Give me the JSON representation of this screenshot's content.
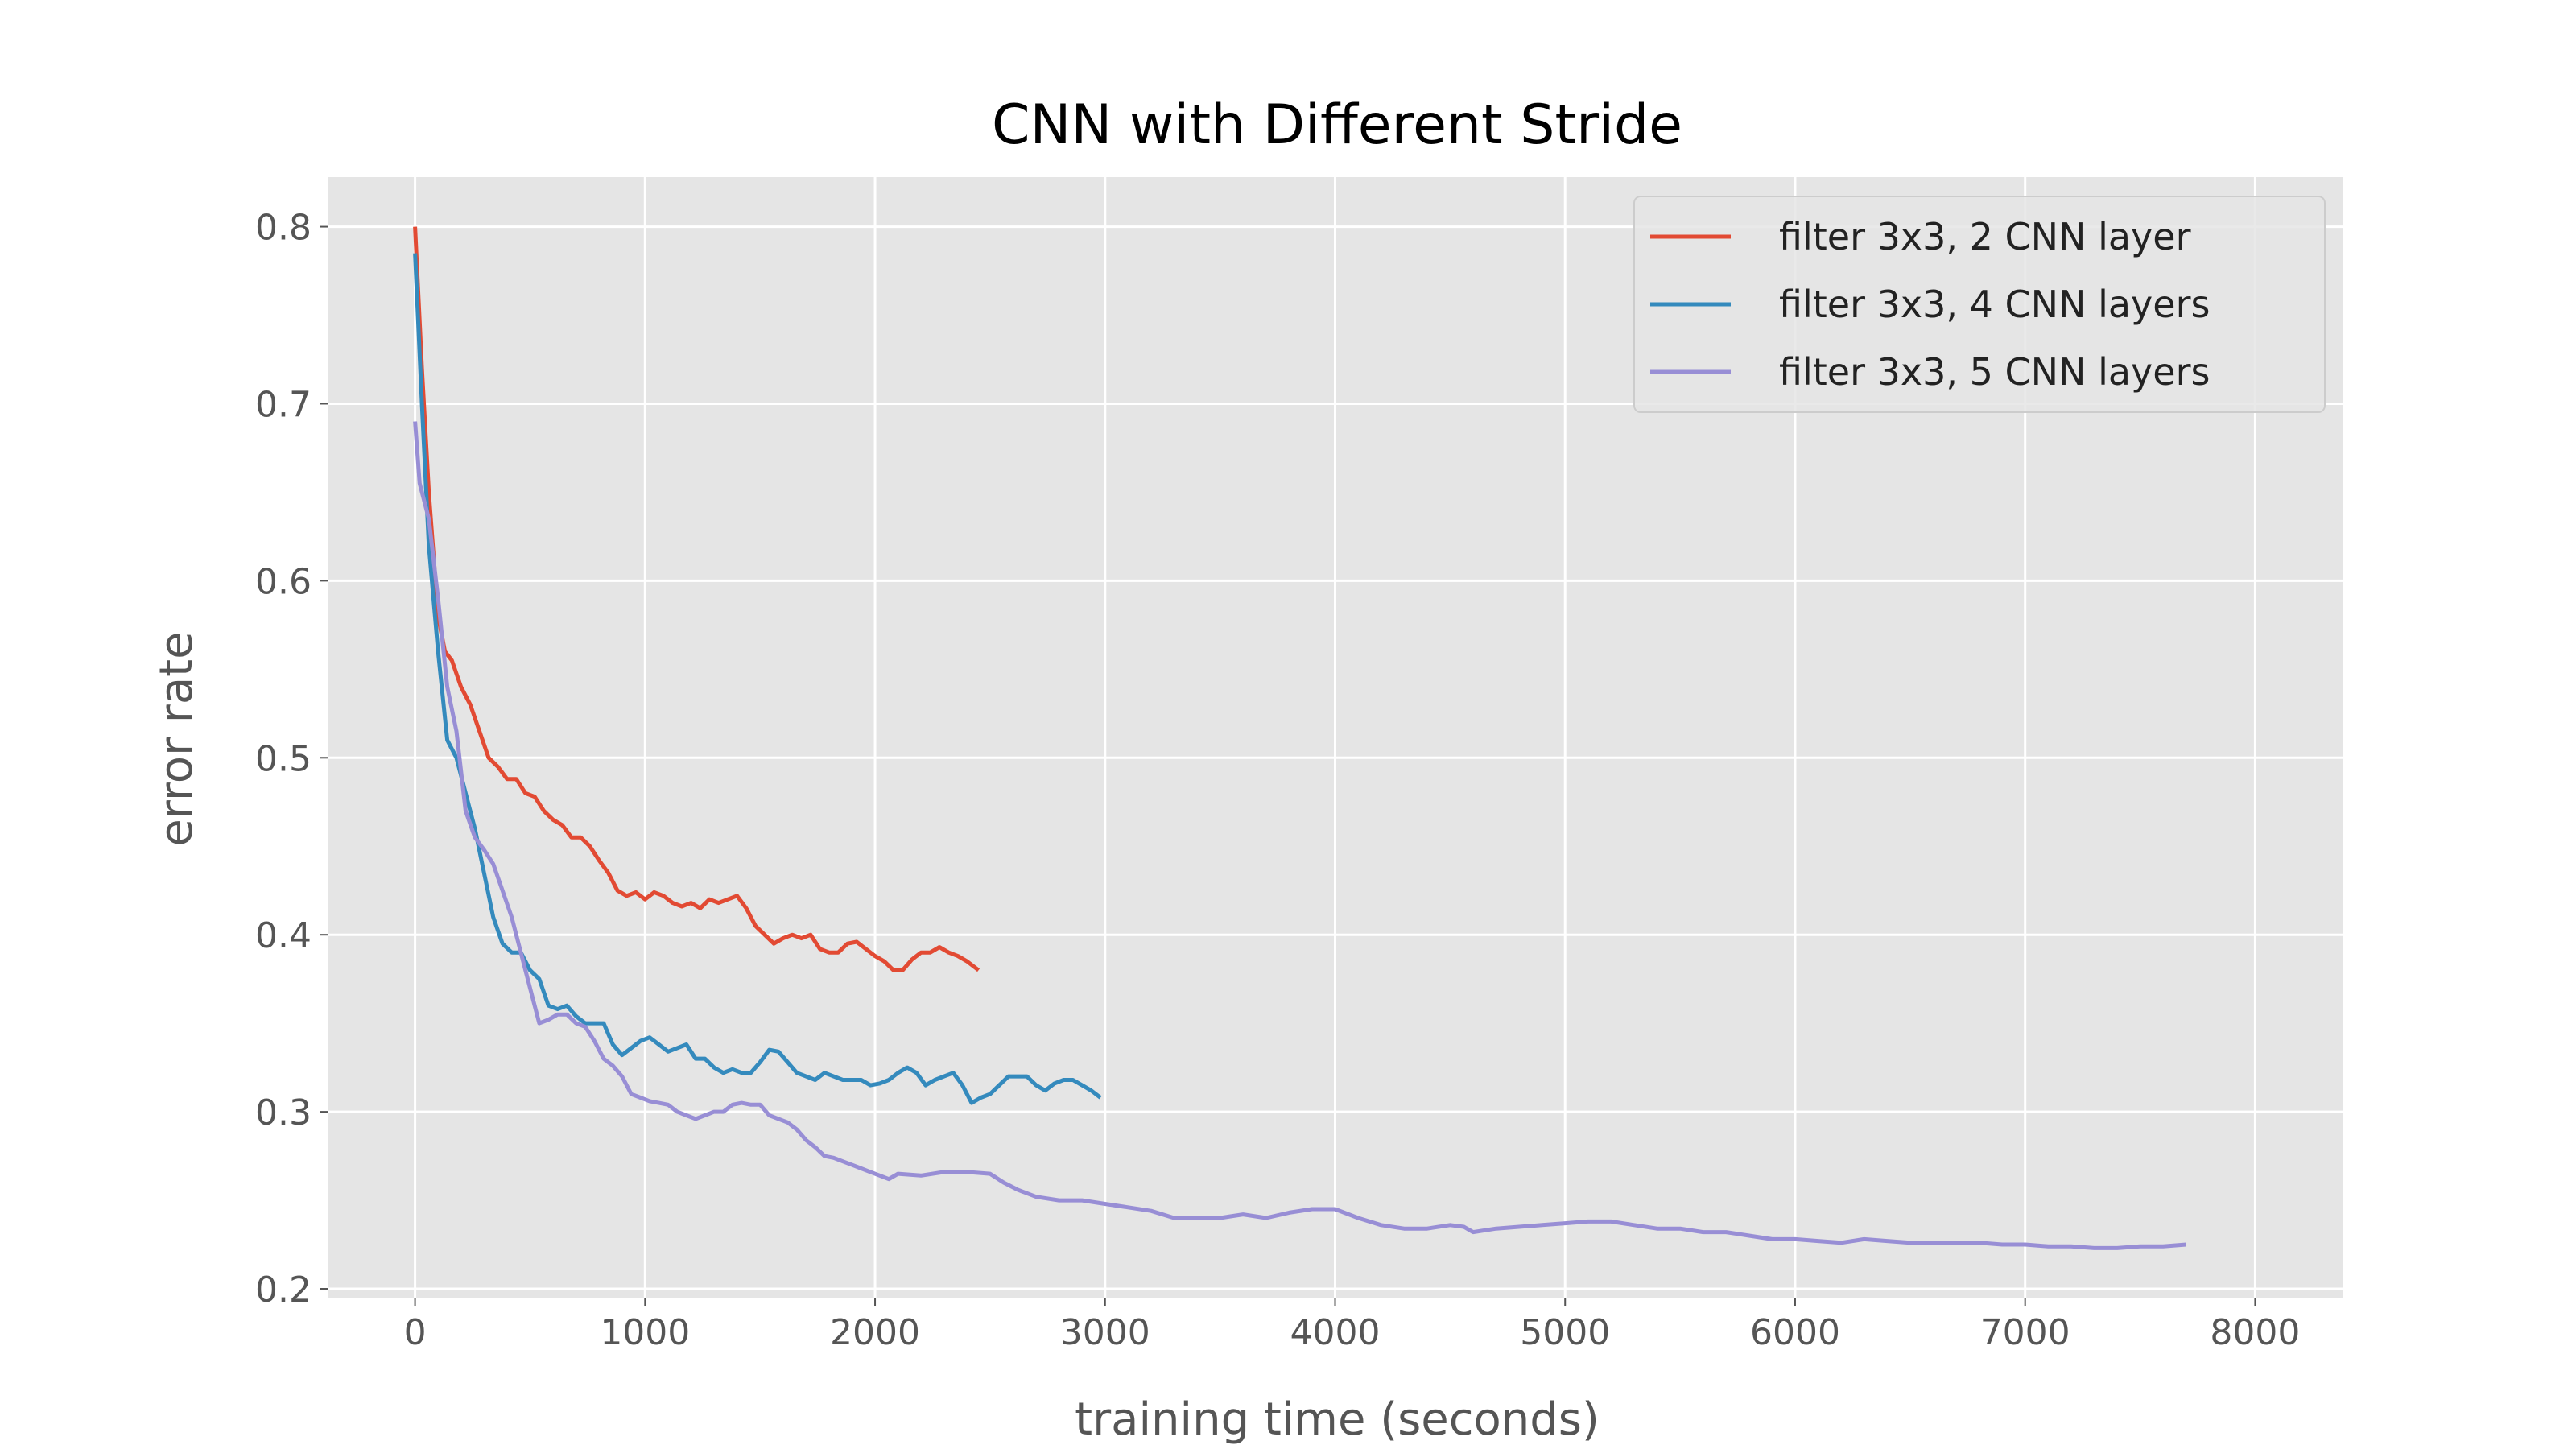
{
  "chart_data": {
    "type": "line",
    "title": "CNN with Different Stride",
    "xlabel": "training time (seconds)",
    "ylabel": "error rate",
    "xlim": [
      -380,
      8380
    ],
    "ylim": [
      0.195,
      0.828
    ],
    "xticks": [
      0,
      1000,
      2000,
      3000,
      4000,
      5000,
      6000,
      7000,
      8000
    ],
    "yticks": [
      0.2,
      0.3,
      0.4,
      0.5,
      0.6,
      0.7,
      0.8
    ],
    "grid": true,
    "legend_position": "top-right",
    "background": "#e5e5e5",
    "series": [
      {
        "name": "filter 3x3, 2 CNN layer",
        "color": "#e24a33",
        "points": [
          [
            0,
            0.8
          ],
          [
            30,
            0.72
          ],
          [
            60,
            0.65
          ],
          [
            100,
            0.58
          ],
          [
            130,
            0.56
          ],
          [
            160,
            0.555
          ],
          [
            200,
            0.54
          ],
          [
            240,
            0.53
          ],
          [
            280,
            0.515
          ],
          [
            320,
            0.5
          ],
          [
            360,
            0.495
          ],
          [
            400,
            0.488
          ],
          [
            440,
            0.488
          ],
          [
            480,
            0.48
          ],
          [
            520,
            0.478
          ],
          [
            560,
            0.47
          ],
          [
            600,
            0.465
          ],
          [
            640,
            0.462
          ],
          [
            680,
            0.455
          ],
          [
            720,
            0.455
          ],
          [
            760,
            0.45
          ],
          [
            800,
            0.442
          ],
          [
            840,
            0.435
          ],
          [
            880,
            0.425
          ],
          [
            920,
            0.422
          ],
          [
            960,
            0.424
          ],
          [
            1000,
            0.42
          ],
          [
            1040,
            0.424
          ],
          [
            1080,
            0.422
          ],
          [
            1120,
            0.418
          ],
          [
            1160,
            0.416
          ],
          [
            1200,
            0.418
          ],
          [
            1240,
            0.415
          ],
          [
            1280,
            0.42
          ],
          [
            1320,
            0.418
          ],
          [
            1360,
            0.42
          ],
          [
            1400,
            0.422
          ],
          [
            1440,
            0.415
          ],
          [
            1480,
            0.405
          ],
          [
            1520,
            0.4
          ],
          [
            1560,
            0.395
          ],
          [
            1600,
            0.398
          ],
          [
            1640,
            0.4
          ],
          [
            1680,
            0.398
          ],
          [
            1720,
            0.4
          ],
          [
            1760,
            0.392
          ],
          [
            1800,
            0.39
          ],
          [
            1840,
            0.39
          ],
          [
            1880,
            0.395
          ],
          [
            1920,
            0.396
          ],
          [
            1960,
            0.392
          ],
          [
            2000,
            0.388
          ],
          [
            2040,
            0.385
          ],
          [
            2080,
            0.38
          ],
          [
            2120,
            0.38
          ],
          [
            2160,
            0.386
          ],
          [
            2200,
            0.39
          ],
          [
            2240,
            0.39
          ],
          [
            2280,
            0.393
          ],
          [
            2320,
            0.39
          ],
          [
            2360,
            0.388
          ],
          [
            2400,
            0.385
          ],
          [
            2450,
            0.38
          ]
        ]
      },
      {
        "name": "filter 3x3, 4 CNN layers",
        "color": "#348abd",
        "points": [
          [
            0,
            0.785
          ],
          [
            30,
            0.7
          ],
          [
            60,
            0.62
          ],
          [
            100,
            0.56
          ],
          [
            140,
            0.51
          ],
          [
            180,
            0.5
          ],
          [
            220,
            0.48
          ],
          [
            260,
            0.46
          ],
          [
            300,
            0.435
          ],
          [
            340,
            0.41
          ],
          [
            380,
            0.395
          ],
          [
            420,
            0.39
          ],
          [
            460,
            0.39
          ],
          [
            500,
            0.38
          ],
          [
            540,
            0.375
          ],
          [
            580,
            0.36
          ],
          [
            620,
            0.358
          ],
          [
            660,
            0.36
          ],
          [
            700,
            0.354
          ],
          [
            740,
            0.35
          ],
          [
            780,
            0.35
          ],
          [
            820,
            0.35
          ],
          [
            860,
            0.338
          ],
          [
            900,
            0.332
          ],
          [
            940,
            0.336
          ],
          [
            980,
            0.34
          ],
          [
            1020,
            0.342
          ],
          [
            1060,
            0.338
          ],
          [
            1100,
            0.334
          ],
          [
            1140,
            0.336
          ],
          [
            1180,
            0.338
          ],
          [
            1220,
            0.33
          ],
          [
            1260,
            0.33
          ],
          [
            1300,
            0.325
          ],
          [
            1340,
            0.322
          ],
          [
            1380,
            0.324
          ],
          [
            1420,
            0.322
          ],
          [
            1460,
            0.322
          ],
          [
            1500,
            0.328
          ],
          [
            1540,
            0.335
          ],
          [
            1580,
            0.334
          ],
          [
            1620,
            0.328
          ],
          [
            1660,
            0.322
          ],
          [
            1700,
            0.32
          ],
          [
            1740,
            0.318
          ],
          [
            1780,
            0.322
          ],
          [
            1820,
            0.32
          ],
          [
            1860,
            0.318
          ],
          [
            1900,
            0.318
          ],
          [
            1940,
            0.318
          ],
          [
            1980,
            0.315
          ],
          [
            2020,
            0.316
          ],
          [
            2060,
            0.318
          ],
          [
            2100,
            0.322
          ],
          [
            2140,
            0.325
          ],
          [
            2180,
            0.322
          ],
          [
            2220,
            0.315
          ],
          [
            2260,
            0.318
          ],
          [
            2300,
            0.32
          ],
          [
            2340,
            0.322
          ],
          [
            2380,
            0.315
          ],
          [
            2420,
            0.305
          ],
          [
            2460,
            0.308
          ],
          [
            2500,
            0.31
          ],
          [
            2540,
            0.315
          ],
          [
            2580,
            0.32
          ],
          [
            2620,
            0.32
          ],
          [
            2660,
            0.32
          ],
          [
            2700,
            0.315
          ],
          [
            2740,
            0.312
          ],
          [
            2780,
            0.316
          ],
          [
            2820,
            0.318
          ],
          [
            2860,
            0.318
          ],
          [
            2900,
            0.315
          ],
          [
            2940,
            0.312
          ],
          [
            2980,
            0.308
          ]
        ]
      },
      {
        "name": "filter 3x3, 5 CNN layers",
        "color": "#988ed5",
        "points": [
          [
            0,
            0.69
          ],
          [
            20,
            0.655
          ],
          [
            60,
            0.635
          ],
          [
            100,
            0.59
          ],
          [
            140,
            0.54
          ],
          [
            180,
            0.515
          ],
          [
            220,
            0.47
          ],
          [
            260,
            0.455
          ],
          [
            300,
            0.448
          ],
          [
            340,
            0.44
          ],
          [
            380,
            0.425
          ],
          [
            420,
            0.41
          ],
          [
            460,
            0.39
          ],
          [
            500,
            0.37
          ],
          [
            540,
            0.35
          ],
          [
            580,
            0.352
          ],
          [
            620,
            0.355
          ],
          [
            660,
            0.355
          ],
          [
            700,
            0.35
          ],
          [
            740,
            0.348
          ],
          [
            780,
            0.34
          ],
          [
            820,
            0.33
          ],
          [
            860,
            0.326
          ],
          [
            900,
            0.32
          ],
          [
            940,
            0.31
          ],
          [
            980,
            0.308
          ],
          [
            1020,
            0.306
          ],
          [
            1060,
            0.305
          ],
          [
            1100,
            0.304
          ],
          [
            1140,
            0.3
          ],
          [
            1180,
            0.298
          ],
          [
            1220,
            0.296
          ],
          [
            1260,
            0.298
          ],
          [
            1300,
            0.3
          ],
          [
            1340,
            0.3
          ],
          [
            1380,
            0.304
          ],
          [
            1420,
            0.305
          ],
          [
            1460,
            0.304
          ],
          [
            1500,
            0.304
          ],
          [
            1540,
            0.298
          ],
          [
            1580,
            0.296
          ],
          [
            1620,
            0.294
          ],
          [
            1660,
            0.29
          ],
          [
            1700,
            0.284
          ],
          [
            1740,
            0.28
          ],
          [
            1780,
            0.275
          ],
          [
            1820,
            0.274
          ],
          [
            1860,
            0.272
          ],
          [
            1900,
            0.27
          ],
          [
            1940,
            0.268
          ],
          [
            1980,
            0.266
          ],
          [
            2020,
            0.264
          ],
          [
            2060,
            0.262
          ],
          [
            2100,
            0.265
          ],
          [
            2200,
            0.264
          ],
          [
            2300,
            0.266
          ],
          [
            2400,
            0.266
          ],
          [
            2500,
            0.265
          ],
          [
            2560,
            0.26
          ],
          [
            2620,
            0.256
          ],
          [
            2700,
            0.252
          ],
          [
            2800,
            0.25
          ],
          [
            2900,
            0.25
          ],
          [
            3000,
            0.248
          ],
          [
            3100,
            0.246
          ],
          [
            3200,
            0.244
          ],
          [
            3300,
            0.24
          ],
          [
            3400,
            0.24
          ],
          [
            3500,
            0.24
          ],
          [
            3600,
            0.242
          ],
          [
            3700,
            0.24
          ],
          [
            3800,
            0.243
          ],
          [
            3900,
            0.245
          ],
          [
            4000,
            0.245
          ],
          [
            4100,
            0.24
          ],
          [
            4200,
            0.236
          ],
          [
            4300,
            0.234
          ],
          [
            4400,
            0.234
          ],
          [
            4500,
            0.236
          ],
          [
            4560,
            0.235
          ],
          [
            4600,
            0.232
          ],
          [
            4700,
            0.234
          ],
          [
            4800,
            0.235
          ],
          [
            4900,
            0.236
          ],
          [
            5000,
            0.237
          ],
          [
            5100,
            0.238
          ],
          [
            5200,
            0.238
          ],
          [
            5300,
            0.236
          ],
          [
            5400,
            0.234
          ],
          [
            5500,
            0.234
          ],
          [
            5600,
            0.232
          ],
          [
            5700,
            0.232
          ],
          [
            5800,
            0.23
          ],
          [
            5900,
            0.228
          ],
          [
            6000,
            0.228
          ],
          [
            6100,
            0.227
          ],
          [
            6200,
            0.226
          ],
          [
            6300,
            0.228
          ],
          [
            6400,
            0.227
          ],
          [
            6500,
            0.226
          ],
          [
            6600,
            0.226
          ],
          [
            6700,
            0.226
          ],
          [
            6800,
            0.226
          ],
          [
            6900,
            0.225
          ],
          [
            7000,
            0.225
          ],
          [
            7100,
            0.224
          ],
          [
            7200,
            0.224
          ],
          [
            7300,
            0.223
          ],
          [
            7400,
            0.223
          ],
          [
            7500,
            0.224
          ],
          [
            7600,
            0.224
          ],
          [
            7700,
            0.225
          ]
        ]
      }
    ]
  }
}
